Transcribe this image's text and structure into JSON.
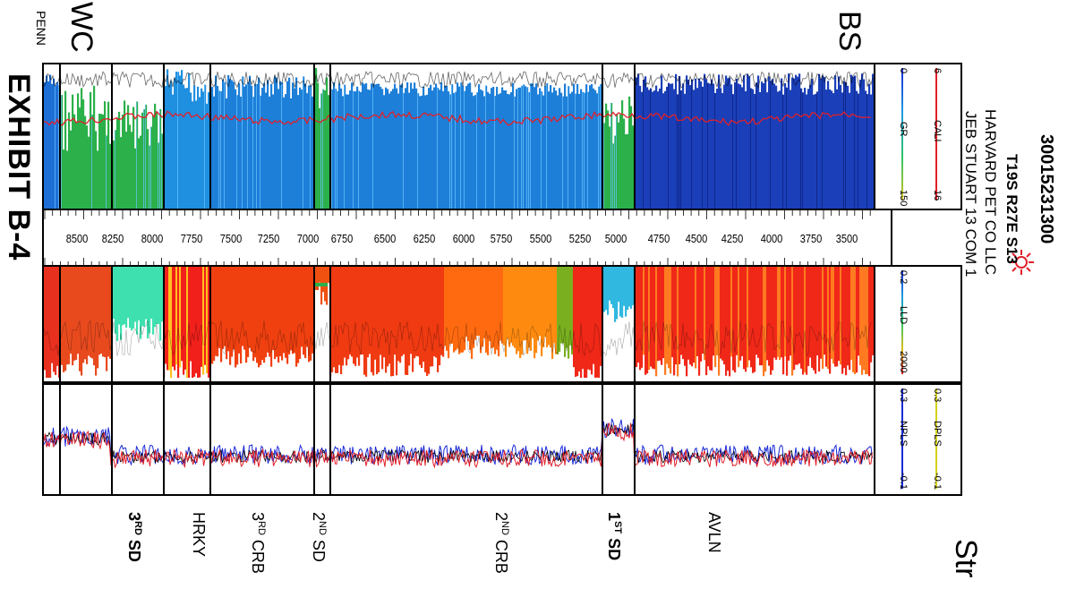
{
  "exhibit_label": "EXHIBIT B-4",
  "corner_labels": {
    "penn": "PENN",
    "wc": "WC",
    "bs": "BS",
    "str": "Str"
  },
  "well": {
    "api": "30015231300",
    "location": "T19S R27E S13",
    "operator": "HARVARD PET CO LLC",
    "name": "JEB STUART 13 COM 1",
    "symbol": "gas-well-icon"
  },
  "tracks": {
    "gr": {
      "cali_label": "CALI",
      "cali_min": "6",
      "cali_max": "16",
      "gr_label": "GR",
      "gr_min": "0",
      "gr_max": "150",
      "cali_color": "#e0202a",
      "gr_color": "#1d6fd6"
    },
    "depth": {
      "labels": [
        "8500",
        "8250",
        "8000",
        "7750",
        "7500",
        "7250",
        "7000",
        "6750",
        "6500",
        "6250",
        "6000",
        "5750",
        "5500",
        "5250",
        "5000",
        "4750",
        "4500",
        "4250",
        "4000",
        "3750",
        "3500"
      ]
    },
    "res": {
      "lld_label": "LLD",
      "lld_min": "0.2",
      "lld_max": "2000",
      "scale": "log"
    },
    "por": {
      "dpls_label": "DPLS",
      "dpls_min": "0.3",
      "dpls_max": "-0.1",
      "dpls_color": "#e0202a",
      "npls_label": "NPLS",
      "npls_min": "0.3",
      "npls_max": "-0.1",
      "npls_color": "#1a2ad6"
    }
  },
  "formations": [
    {
      "base": "3",
      "sup": "RD",
      "rest": "SD",
      "bold": true
    },
    {
      "base": "HRKY",
      "sup": "",
      "rest": "",
      "bold": false
    },
    {
      "base": "3",
      "sup": "RD",
      "rest": "CRB",
      "bold": false
    },
    {
      "base": "2",
      "sup": "ND",
      "rest": "SD",
      "bold": false
    },
    {
      "base": "2",
      "sup": "ND",
      "rest": "CRB",
      "bold": false
    },
    {
      "base": "1",
      "sup": "ST",
      "rest": "SD",
      "bold": true
    },
    {
      "base": "AVLN",
      "sup": "",
      "rest": "",
      "bold": false
    }
  ]
}
